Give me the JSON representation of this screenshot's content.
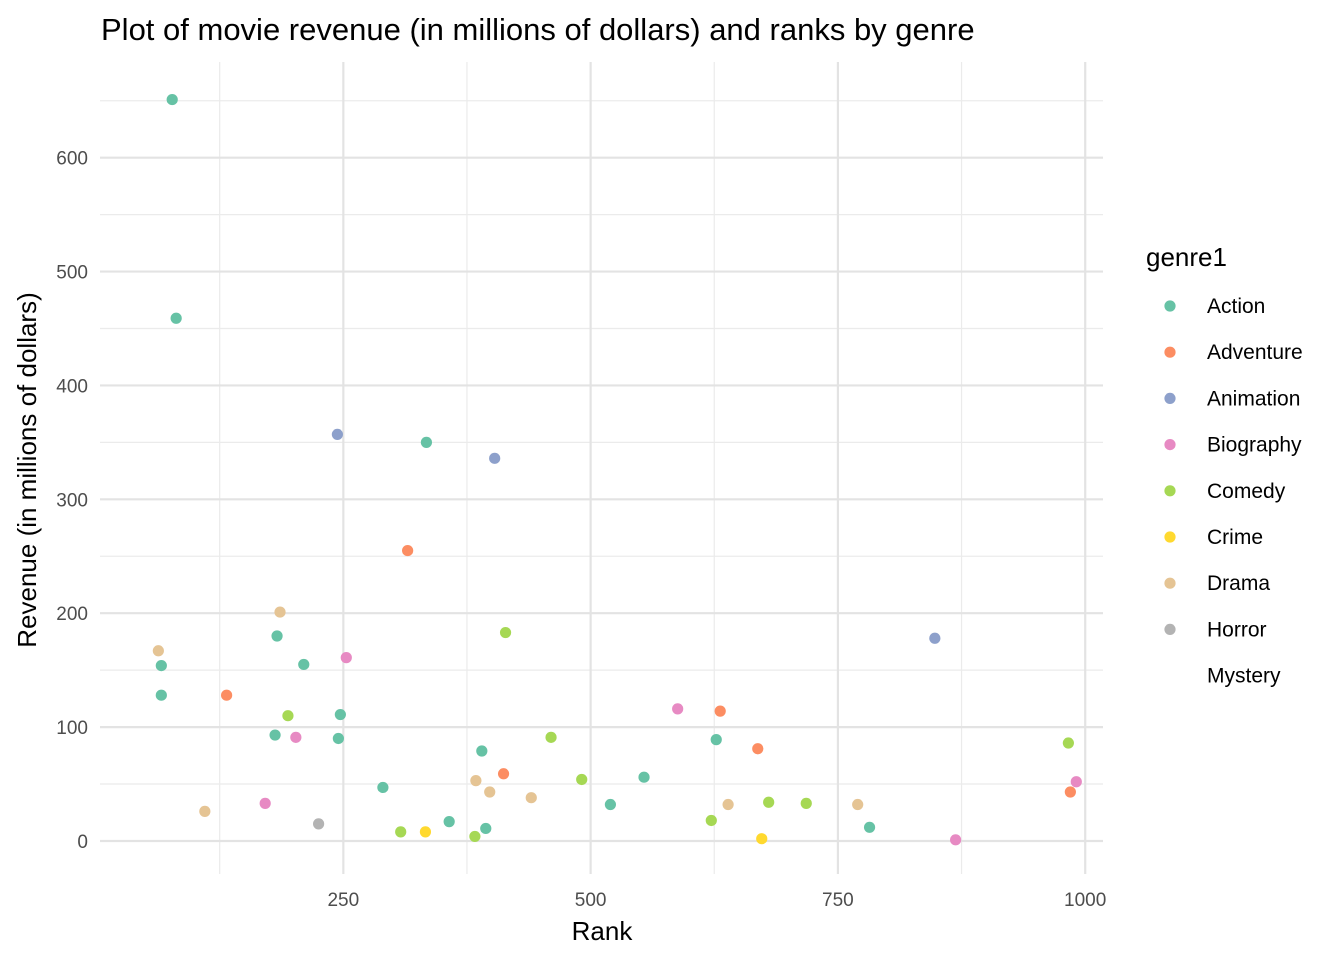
{
  "chart_data": {
    "type": "scatter",
    "title": "Plot of movie revenue (in millions of dollars) and ranks by genre",
    "xlabel": "Rank",
    "ylabel": "Revenue (in millions of dollars)",
    "xlim": [
      4,
      1018
    ],
    "ylim": [
      -29,
      684
    ],
    "x_ticks": [
      250,
      500,
      750,
      1000
    ],
    "x_tick_labels": [
      "250",
      "500",
      "750",
      "1000"
    ],
    "y_ticks": [
      0,
      100,
      200,
      300,
      400,
      500,
      600
    ],
    "y_tick_labels": [
      "0",
      "100",
      "200",
      "300",
      "400",
      "500",
      "600"
    ],
    "grid": true,
    "legend_position": "right",
    "legend_title": "genre1",
    "series": [
      {
        "name": "Action",
        "color": "#66C2A5",
        "points": [
          [
            77,
            651
          ],
          [
            81,
            459
          ],
          [
            66,
            154
          ],
          [
            66,
            128
          ],
          [
            183,
            180
          ],
          [
            210,
            155
          ],
          [
            181,
            93
          ],
          [
            247,
            111
          ],
          [
            245,
            90
          ],
          [
            334,
            350
          ],
          [
            290,
            47
          ],
          [
            357,
            17
          ],
          [
            390,
            79
          ],
          [
            394,
            11
          ],
          [
            520,
            32
          ],
          [
            554,
            56
          ],
          [
            627,
            89
          ],
          [
            782,
            12
          ]
        ]
      },
      {
        "name": "Adventure",
        "color": "#FC8D62",
        "points": [
          [
            132,
            128
          ],
          [
            315,
            255
          ],
          [
            412,
            59
          ],
          [
            631,
            114
          ],
          [
            669,
            81
          ],
          [
            985,
            43
          ]
        ]
      },
      {
        "name": "Animation",
        "color": "#8DA0CB",
        "points": [
          [
            244,
            357
          ],
          [
            403,
            336
          ],
          [
            848,
            178
          ]
        ]
      },
      {
        "name": "Biography",
        "color": "#E78AC3",
        "points": [
          [
            171,
            33
          ],
          [
            202,
            91
          ],
          [
            253,
            161
          ],
          [
            588,
            116
          ],
          [
            869,
            1
          ],
          [
            991,
            52
          ]
        ]
      },
      {
        "name": "Comedy",
        "color": "#A6D854",
        "points": [
          [
            194,
            110
          ],
          [
            308,
            8
          ],
          [
            383,
            4
          ],
          [
            414,
            183
          ],
          [
            460,
            91
          ],
          [
            491,
            54
          ],
          [
            622,
            18
          ],
          [
            680,
            34
          ],
          [
            718,
            33
          ],
          [
            983,
            86
          ]
        ]
      },
      {
        "name": "Crime",
        "color": "#FFD92F",
        "points": [
          [
            333,
            8
          ],
          [
            673,
            2
          ]
        ]
      },
      {
        "name": "Drama",
        "color": "#E5C494",
        "points": [
          [
            63,
            167
          ],
          [
            110,
            26
          ],
          [
            186,
            201
          ],
          [
            384,
            53
          ],
          [
            398,
            43
          ],
          [
            440,
            38
          ],
          [
            639,
            32
          ],
          [
            770,
            32
          ]
        ]
      },
      {
        "name": "Horror",
        "color": "#B3B3B3",
        "points": [
          [
            225,
            15
          ]
        ]
      },
      {
        "name": "Mystery",
        "color": "#FFFFFF",
        "points": []
      }
    ]
  }
}
